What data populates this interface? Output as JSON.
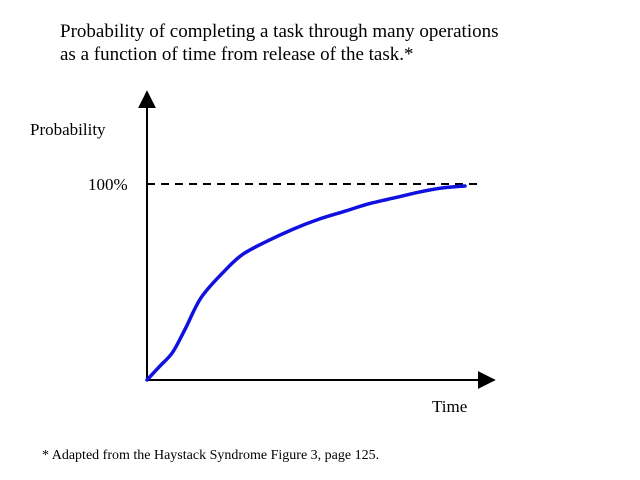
{
  "chart_data": {
    "type": "line",
    "title_lines": [
      "Probability of completing a task through many operations",
      "as a function of time from release of the task.*"
    ],
    "xlabel": "Time",
    "ylabel": "Probability",
    "y_ticks": [
      {
        "value": 100,
        "label": "100%"
      }
    ],
    "xlim": [
      0,
      100
    ],
    "ylim": [
      0,
      100
    ],
    "grid": false,
    "legend": "none",
    "reference_lines": [
      {
        "axis": "y",
        "value": 100,
        "style": "dashed"
      }
    ],
    "series": [
      {
        "color": "#1010e0",
        "x": [
          0,
          4,
          8,
          12,
          17,
          24,
          30,
          38,
          46,
          54,
          62,
          70,
          78,
          86,
          93,
          100
        ],
        "y": [
          0,
          7,
          14,
          26,
          42,
          55,
          64,
          71,
          77,
          82,
          86,
          90,
          93,
          96,
          98,
          99
        ]
      }
    ]
  },
  "footnote": "* Adapted from the Haystack Syndrome Figure 3, page 125."
}
